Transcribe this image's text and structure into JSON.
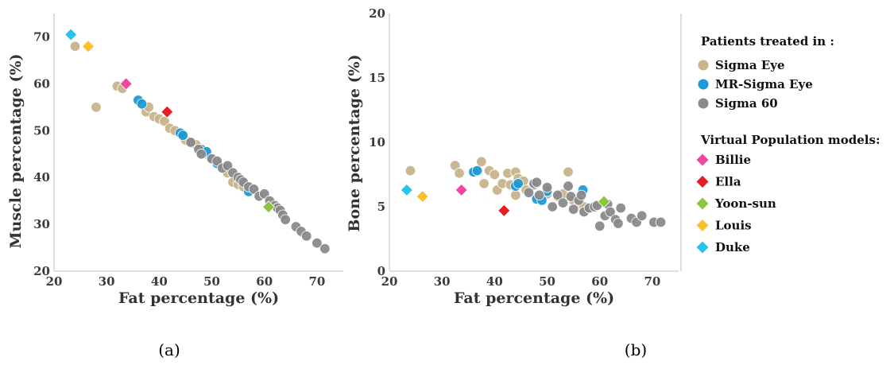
{
  "chart_data": [
    {
      "type": "scatter",
      "panel_label": "(a)",
      "xlabel": "Fat percentage (%)",
      "ylabel": "Muscle percentage (%)",
      "xlim": [
        20,
        75
      ],
      "ylim": [
        20,
        75
      ],
      "xticks": [
        "20",
        "30",
        "40",
        "50",
        "60",
        "70"
      ],
      "yticks": [
        "20",
        "30",
        "40",
        "50",
        "60",
        "70"
      ],
      "grid": false,
      "series": [
        {
          "name": "Sigma Eye",
          "color": "#c8b48c",
          "marker": "circle",
          "points": [
            [
              24,
              68
            ],
            [
              28,
              55
            ],
            [
              32,
              59.5
            ],
            [
              33,
              59
            ],
            [
              37.5,
              54
            ],
            [
              38,
              55
            ],
            [
              39,
              53
            ],
            [
              40,
              52.5
            ],
            [
              41,
              52
            ],
            [
              42,
              50.5
            ],
            [
              43,
              50
            ],
            [
              44.5,
              49
            ],
            [
              45,
              48
            ],
            [
              46,
              47.5
            ],
            [
              47,
              47
            ],
            [
              49,
              45
            ],
            [
              53,
              41
            ],
            [
              54,
              39
            ],
            [
              55,
              38.5
            ],
            [
              56,
              38
            ],
            [
              57,
              38
            ]
          ]
        },
        {
          "name": "MR-Sigma Eye",
          "color": "#1b9ad6",
          "marker": "circle",
          "points": [
            [
              36,
              56.5
            ],
            [
              36.7,
              55.7
            ],
            [
              44,
              49.5
            ],
            [
              44.5,
              49
            ],
            [
              48,
              46
            ],
            [
              49,
              45.5
            ],
            [
              50,
              44
            ],
            [
              51,
              43
            ],
            [
              55,
              40
            ],
            [
              57,
              37
            ]
          ]
        },
        {
          "name": "Sigma 60",
          "color": "#8a8a8a",
          "marker": "circle",
          "points": [
            [
              46,
              47.5
            ],
            [
              47.5,
              46
            ],
            [
              48,
              45
            ],
            [
              50,
              44
            ],
            [
              51,
              43.5
            ],
            [
              52,
              42
            ],
            [
              53,
              42.5
            ],
            [
              54,
              41
            ],
            [
              55,
              40
            ],
            [
              55.5,
              39.5
            ],
            [
              56,
              39
            ],
            [
              57,
              38
            ],
            [
              58,
              37.5
            ],
            [
              59,
              36
            ],
            [
              60,
              36.5
            ],
            [
              61,
              35
            ],
            [
              62,
              34
            ],
            [
              62.5,
              33.5
            ],
            [
              63,
              33
            ],
            [
              63.5,
              32
            ],
            [
              64,
              31
            ],
            [
              66,
              29.5
            ],
            [
              67,
              28.5
            ],
            [
              68,
              27.5
            ],
            [
              70,
              26
            ],
            [
              71.5,
              24.8
            ]
          ]
        },
        {
          "name": "Billie",
          "color": "#f0479e",
          "marker": "diamond",
          "points": [
            [
              33.7,
              60
            ]
          ]
        },
        {
          "name": "Ella",
          "color": "#e31e24",
          "marker": "diamond",
          "points": [
            [
              41.5,
              54
            ]
          ]
        },
        {
          "name": "Yoon-sun",
          "color": "#8cc63f",
          "marker": "diamond",
          "points": [
            [
              60.8,
              33.7
            ]
          ]
        },
        {
          "name": "Louis",
          "color": "#fbc02d",
          "marker": "diamond",
          "points": [
            [
              26.5,
              68
            ]
          ]
        },
        {
          "name": "Duke",
          "color": "#27c4ee",
          "marker": "diamond",
          "points": [
            [
              23.2,
              70.5
            ]
          ]
        }
      ]
    },
    {
      "type": "scatter",
      "panel_label": "(b)",
      "xlabel": "Fat percentage (%)",
      "ylabel": "Bone percentage (%)",
      "xlim": [
        20,
        75
      ],
      "ylim": [
        0,
        20
      ],
      "xticks": [
        "20",
        "30",
        "40",
        "50",
        "60",
        "70"
      ],
      "yticks": [
        "0",
        "5",
        "10",
        "15",
        "20"
      ],
      "grid": false,
      "series": [
        {
          "name": "Sigma Eye",
          "color": "#c8b48c",
          "marker": "circle",
          "points": [
            [
              24,
              7.8
            ],
            [
              32.5,
              8.2
            ],
            [
              33.3,
              7.6
            ],
            [
              37.5,
              8.5
            ],
            [
              38,
              6.8
            ],
            [
              39,
              7.8
            ],
            [
              40,
              7.5
            ],
            [
              40.5,
              6.3
            ],
            [
              41.5,
              6.8
            ],
            [
              42.5,
              7.6
            ],
            [
              43,
              6.7
            ],
            [
              44,
              7.7
            ],
            [
              44.5,
              7.2
            ],
            [
              44,
              5.9
            ],
            [
              45.5,
              7
            ],
            [
              46,
              6.3
            ],
            [
              48,
              6.8
            ],
            [
              50,
              6
            ],
            [
              52,
              5.8
            ],
            [
              53,
              6
            ],
            [
              54,
              7.7
            ],
            [
              55,
              5.5
            ],
            [
              56,
              5.2
            ],
            [
              57,
              5
            ]
          ]
        },
        {
          "name": "MR-Sigma Eye",
          "color": "#1b9ad6",
          "marker": "circle",
          "points": [
            [
              36,
              7.7
            ],
            [
              36.7,
              7.8
            ],
            [
              44,
              6.6
            ],
            [
              44.5,
              6.8
            ],
            [
              47.5,
              6.7
            ],
            [
              48,
              5.6
            ],
            [
              49,
              5.5
            ],
            [
              50,
              6.2
            ],
            [
              56.8,
              6.3
            ],
            [
              59,
              5
            ]
          ]
        },
        {
          "name": "Sigma 60",
          "color": "#8a8a8a",
          "marker": "circle",
          "points": [
            [
              46.5,
              6.1
            ],
            [
              47.5,
              6.8
            ],
            [
              48,
              6.9
            ],
            [
              48.5,
              5.9
            ],
            [
              50,
              6.5
            ],
            [
              51,
              5
            ],
            [
              52,
              5.9
            ],
            [
              53,
              5.3
            ],
            [
              54,
              6.6
            ],
            [
              54.5,
              5.8
            ],
            [
              55,
              4.8
            ],
            [
              56,
              5.5
            ],
            [
              56.5,
              5.9
            ],
            [
              57,
              4.6
            ],
            [
              58,
              4.9
            ],
            [
              59,
              5
            ],
            [
              59.5,
              5.1
            ],
            [
              60,
              3.5
            ],
            [
              61,
              4.3
            ],
            [
              61.5,
              5.2
            ],
            [
              62,
              4.6
            ],
            [
              63,
              4
            ],
            [
              63.5,
              3.7
            ],
            [
              64,
              4.9
            ],
            [
              66,
              4.1
            ],
            [
              67,
              3.8
            ],
            [
              68,
              4.3
            ],
            [
              70.3,
              3.8
            ],
            [
              71.6,
              3.8
            ]
          ]
        },
        {
          "name": "Billie",
          "color": "#f0479e",
          "marker": "diamond",
          "points": [
            [
              33.7,
              6.3
            ]
          ]
        },
        {
          "name": "Ella",
          "color": "#e31e24",
          "marker": "diamond",
          "points": [
            [
              41.8,
              4.7
            ]
          ]
        },
        {
          "name": "Yoon-sun",
          "color": "#8cc63f",
          "marker": "diamond",
          "points": [
            [
              60.8,
              5.4
            ]
          ]
        },
        {
          "name": "Louis",
          "color": "#fbc02d",
          "marker": "diamond",
          "points": [
            [
              26.3,
              5.8
            ]
          ]
        },
        {
          "name": "Duke",
          "color": "#27c4ee",
          "marker": "diamond",
          "points": [
            [
              23.3,
              6.3
            ]
          ]
        }
      ]
    }
  ],
  "legend": {
    "placement": "right",
    "group1_title": "Patients treated in :",
    "group1": [
      {
        "label": "Sigma Eye",
        "color": "#c8b48c",
        "marker": "circle"
      },
      {
        "label": "MR-Sigma Eye",
        "color": "#1b9ad6",
        "marker": "circle"
      },
      {
        "label": "Sigma 60",
        "color": "#8a8a8a",
        "marker": "circle"
      }
    ],
    "group2_title": "Virtual Population models:",
    "group2": [
      {
        "label": "Billie",
        "color": "#f0479e",
        "marker": "diamond"
      },
      {
        "label": "Ella",
        "color": "#e31e24",
        "marker": "diamond"
      },
      {
        "label": "Yoon-sun",
        "color": "#8cc63f",
        "marker": "diamond"
      },
      {
        "label": "Louis",
        "color": "#fbc02d",
        "marker": "diamond"
      },
      {
        "label": "Duke",
        "color": "#27c4ee",
        "marker": "diamond"
      }
    ]
  },
  "captions": {
    "a": "(a)",
    "b": "(b)"
  }
}
